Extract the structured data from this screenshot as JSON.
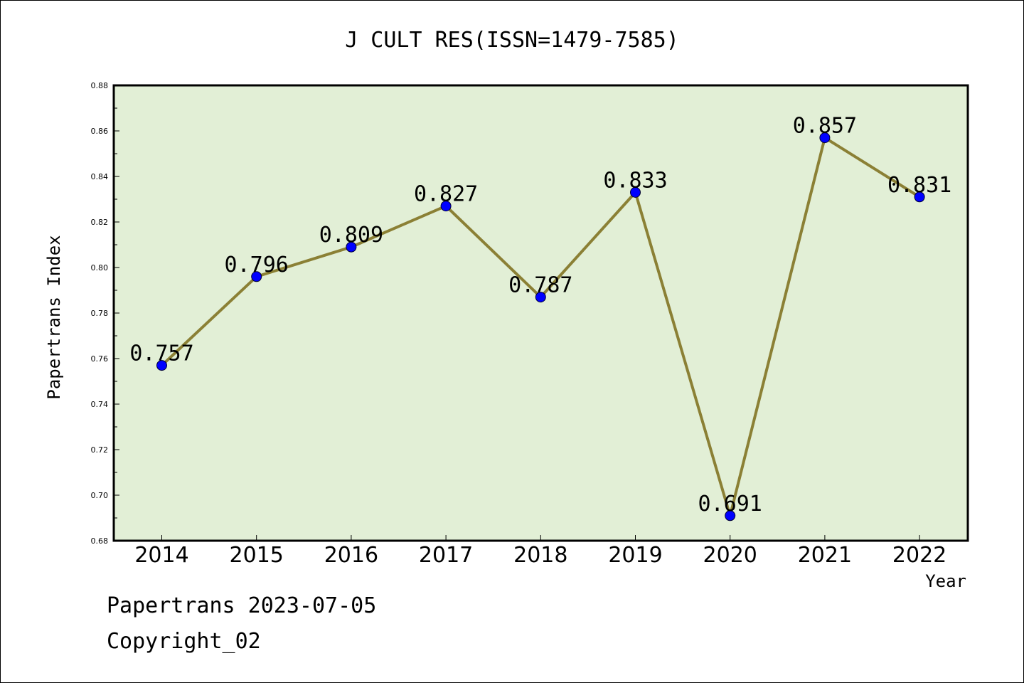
{
  "chart_data": {
    "type": "line",
    "title": "J CULT RES(ISSN=1479-7585)",
    "xlabel": "Year",
    "ylabel": "Papertrans Index",
    "categories": [
      "2014",
      "2015",
      "2016",
      "2017",
      "2018",
      "2019",
      "2020",
      "2021",
      "2022"
    ],
    "series": [
      {
        "values": [
          0.757,
          0.796,
          0.809,
          0.827,
          0.787,
          0.833,
          0.691,
          0.857,
          0.831
        ]
      }
    ],
    "data_labels": [
      "0.757",
      "0.796",
      "0.809",
      "0.827",
      "0.787",
      "0.833",
      "0.691",
      "0.857",
      "0.831"
    ],
    "ylim": [
      0.68,
      0.88
    ],
    "yticks": [
      "0.68",
      "0.70",
      "0.72",
      "0.74",
      "0.76",
      "0.78",
      "0.80",
      "0.82",
      "0.84",
      "0.86",
      "0.88"
    ],
    "grid": false,
    "colors": {
      "plot_bg": "#e2efd6",
      "line": "#8b8035",
      "marker": "#0000ff"
    }
  },
  "footer": {
    "line1": "Papertrans 2023-07-05",
    "line2": "Copyright_02"
  }
}
